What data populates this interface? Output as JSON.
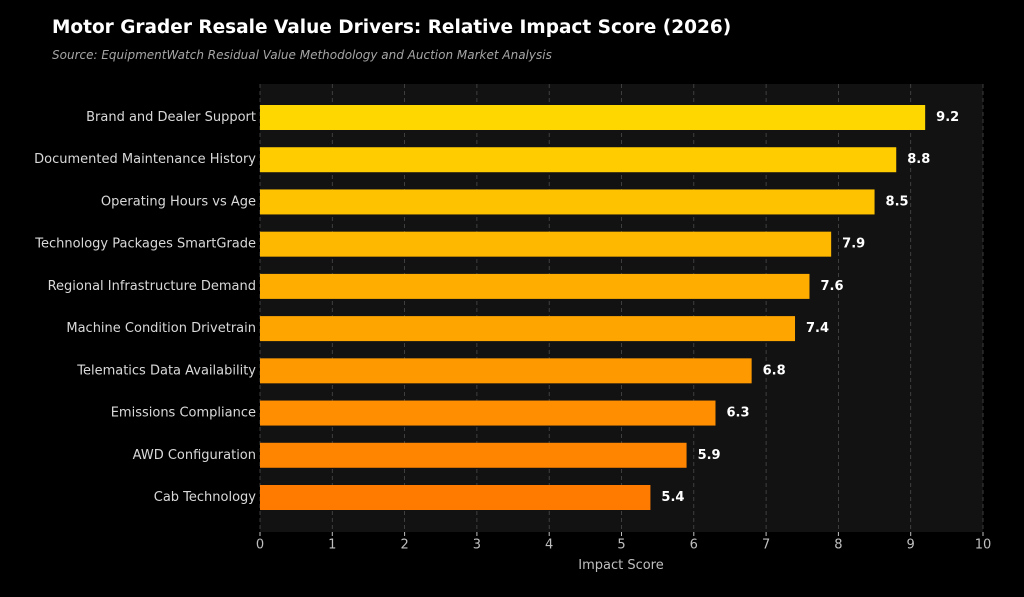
{
  "title": "Motor Grader Resale Value Drivers: Relative Impact Score (2026)",
  "subtitle": "Source: EquipmentWatch Residual Value Methodology and Auction Market Analysis",
  "chart_data": {
    "type": "bar",
    "orientation": "horizontal",
    "title": "Motor Grader Resale Value Drivers: Relative Impact Score (2026)",
    "subtitle": "Source: EquipmentWatch Residual Value Methodology and Auction Market Analysis",
    "xlabel": "Impact Score",
    "ylabel": "",
    "xlim": [
      0,
      10
    ],
    "xticks": [
      0,
      1,
      2,
      3,
      4,
      5,
      6,
      7,
      8,
      9,
      10
    ],
    "grid": "vertical dashed",
    "categories": [
      "Brand and Dealer Support",
      "Documented Maintenance History",
      "Operating Hours vs Age",
      "Technology Packages SmartGrade",
      "Regional Infrastructure Demand",
      "Machine Condition Drivetrain",
      "Telematics Data Availability",
      "Emissions Compliance",
      "AWD Configuration",
      "Cab Technology"
    ],
    "values": [
      9.2,
      8.8,
      8.5,
      7.9,
      7.6,
      7.4,
      6.8,
      6.3,
      5.9,
      5.4
    ],
    "value_labels": [
      "9.2",
      "8.8",
      "8.5",
      "7.9",
      "7.6",
      "7.4",
      "6.8",
      "6.3",
      "5.9",
      "5.4"
    ],
    "colors": [
      "#ffd700",
      "#ffcc00",
      "#ffc200",
      "#ffb800",
      "#ffae00",
      "#ffa500",
      "#ff9900",
      "#ff8e00",
      "#ff8400",
      "#ff7b00"
    ],
    "background": "#121212"
  }
}
